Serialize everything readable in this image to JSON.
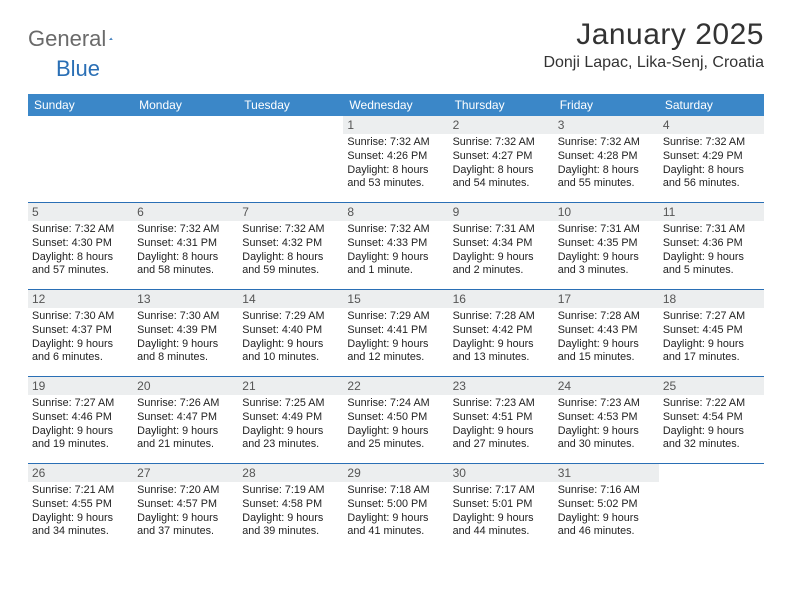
{
  "brand": {
    "part1": "General",
    "part2": "Blue"
  },
  "title": "January 2025",
  "location": "Donji Lapac, Lika-Senj, Croatia",
  "colors": {
    "header_bg": "#3b87c8",
    "divider": "#2a6fb5",
    "daynum_bg": "#eceeef",
    "text": "#222222",
    "title_text": "#333333",
    "logo_gray": "#6a6a6a",
    "logo_blue": "#2a6fb5",
    "background": "#ffffff"
  },
  "weekdays": [
    "Sunday",
    "Monday",
    "Tuesday",
    "Wednesday",
    "Thursday",
    "Friday",
    "Saturday"
  ],
  "weeks": [
    [
      null,
      null,
      null,
      {
        "n": "1",
        "sunrise": "7:32 AM",
        "sunset": "4:26 PM",
        "daylight": "8 hours and 53 minutes."
      },
      {
        "n": "2",
        "sunrise": "7:32 AM",
        "sunset": "4:27 PM",
        "daylight": "8 hours and 54 minutes."
      },
      {
        "n": "3",
        "sunrise": "7:32 AM",
        "sunset": "4:28 PM",
        "daylight": "8 hours and 55 minutes."
      },
      {
        "n": "4",
        "sunrise": "7:32 AM",
        "sunset": "4:29 PM",
        "daylight": "8 hours and 56 minutes."
      }
    ],
    [
      {
        "n": "5",
        "sunrise": "7:32 AM",
        "sunset": "4:30 PM",
        "daylight": "8 hours and 57 minutes."
      },
      {
        "n": "6",
        "sunrise": "7:32 AM",
        "sunset": "4:31 PM",
        "daylight": "8 hours and 58 minutes."
      },
      {
        "n": "7",
        "sunrise": "7:32 AM",
        "sunset": "4:32 PM",
        "daylight": "8 hours and 59 minutes."
      },
      {
        "n": "8",
        "sunrise": "7:32 AM",
        "sunset": "4:33 PM",
        "daylight": "9 hours and 1 minute."
      },
      {
        "n": "9",
        "sunrise": "7:31 AM",
        "sunset": "4:34 PM",
        "daylight": "9 hours and 2 minutes."
      },
      {
        "n": "10",
        "sunrise": "7:31 AM",
        "sunset": "4:35 PM",
        "daylight": "9 hours and 3 minutes."
      },
      {
        "n": "11",
        "sunrise": "7:31 AM",
        "sunset": "4:36 PM",
        "daylight": "9 hours and 5 minutes."
      }
    ],
    [
      {
        "n": "12",
        "sunrise": "7:30 AM",
        "sunset": "4:37 PM",
        "daylight": "9 hours and 6 minutes."
      },
      {
        "n": "13",
        "sunrise": "7:30 AM",
        "sunset": "4:39 PM",
        "daylight": "9 hours and 8 minutes."
      },
      {
        "n": "14",
        "sunrise": "7:29 AM",
        "sunset": "4:40 PM",
        "daylight": "9 hours and 10 minutes."
      },
      {
        "n": "15",
        "sunrise": "7:29 AM",
        "sunset": "4:41 PM",
        "daylight": "9 hours and 12 minutes."
      },
      {
        "n": "16",
        "sunrise": "7:28 AM",
        "sunset": "4:42 PM",
        "daylight": "9 hours and 13 minutes."
      },
      {
        "n": "17",
        "sunrise": "7:28 AM",
        "sunset": "4:43 PM",
        "daylight": "9 hours and 15 minutes."
      },
      {
        "n": "18",
        "sunrise": "7:27 AM",
        "sunset": "4:45 PM",
        "daylight": "9 hours and 17 minutes."
      }
    ],
    [
      {
        "n": "19",
        "sunrise": "7:27 AM",
        "sunset": "4:46 PM",
        "daylight": "9 hours and 19 minutes."
      },
      {
        "n": "20",
        "sunrise": "7:26 AM",
        "sunset": "4:47 PM",
        "daylight": "9 hours and 21 minutes."
      },
      {
        "n": "21",
        "sunrise": "7:25 AM",
        "sunset": "4:49 PM",
        "daylight": "9 hours and 23 minutes."
      },
      {
        "n": "22",
        "sunrise": "7:24 AM",
        "sunset": "4:50 PM",
        "daylight": "9 hours and 25 minutes."
      },
      {
        "n": "23",
        "sunrise": "7:23 AM",
        "sunset": "4:51 PM",
        "daylight": "9 hours and 27 minutes."
      },
      {
        "n": "24",
        "sunrise": "7:23 AM",
        "sunset": "4:53 PM",
        "daylight": "9 hours and 30 minutes."
      },
      {
        "n": "25",
        "sunrise": "7:22 AM",
        "sunset": "4:54 PM",
        "daylight": "9 hours and 32 minutes."
      }
    ],
    [
      {
        "n": "26",
        "sunrise": "7:21 AM",
        "sunset": "4:55 PM",
        "daylight": "9 hours and 34 minutes."
      },
      {
        "n": "27",
        "sunrise": "7:20 AM",
        "sunset": "4:57 PM",
        "daylight": "9 hours and 37 minutes."
      },
      {
        "n": "28",
        "sunrise": "7:19 AM",
        "sunset": "4:58 PM",
        "daylight": "9 hours and 39 minutes."
      },
      {
        "n": "29",
        "sunrise": "7:18 AM",
        "sunset": "5:00 PM",
        "daylight": "9 hours and 41 minutes."
      },
      {
        "n": "30",
        "sunrise": "7:17 AM",
        "sunset": "5:01 PM",
        "daylight": "9 hours and 44 minutes."
      },
      {
        "n": "31",
        "sunrise": "7:16 AM",
        "sunset": "5:02 PM",
        "daylight": "9 hours and 46 minutes."
      },
      null
    ]
  ]
}
